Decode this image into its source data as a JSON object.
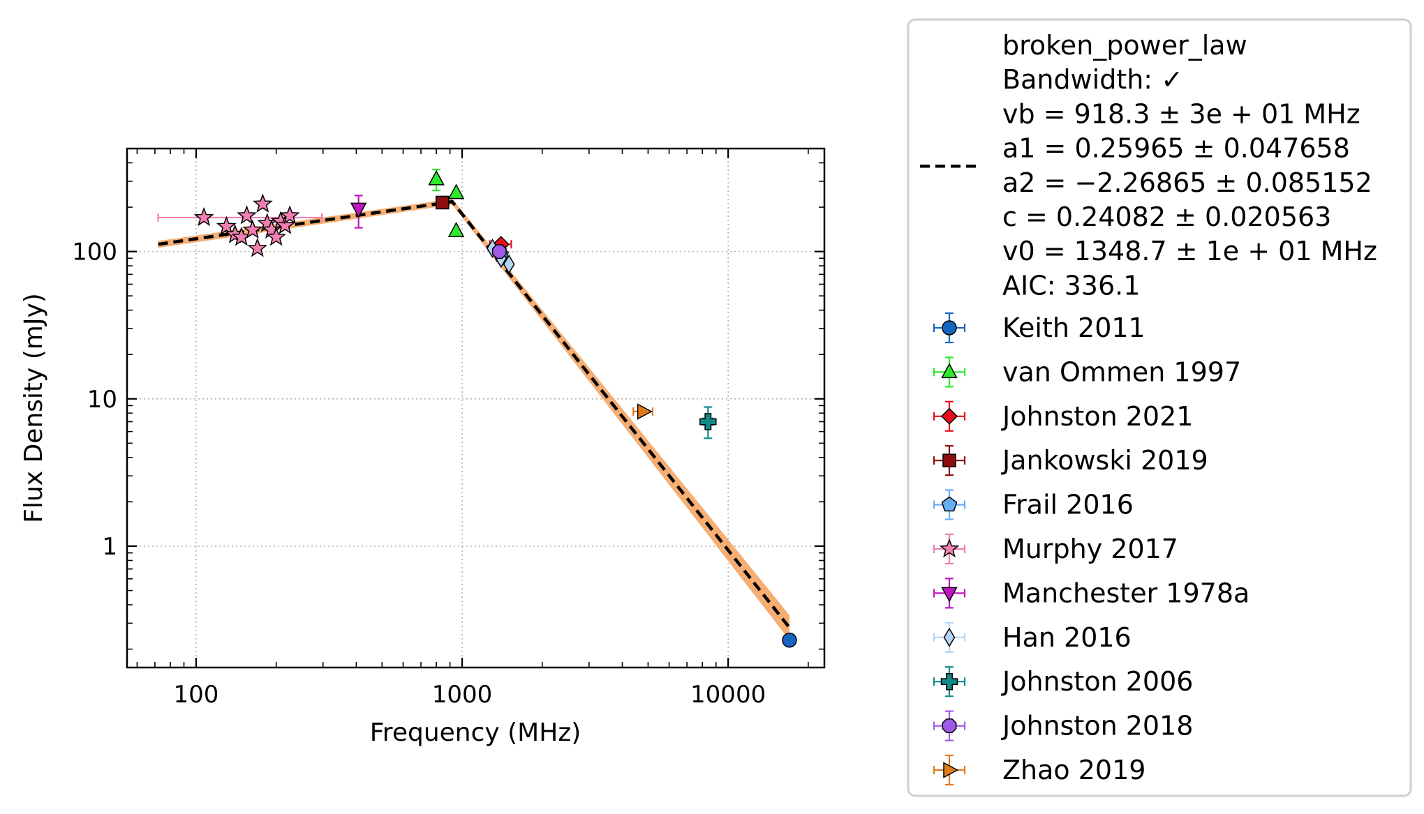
{
  "chart_data": {
    "type": "scatter",
    "x_scale": "log",
    "y_scale": "log",
    "xlabel": "Frequency (MHz)",
    "ylabel": "Flux Density (mJy)",
    "xlim": [
      55,
      23000
    ],
    "ylim": [
      0.15,
      500
    ],
    "grid": true,
    "x_ticks": [
      {
        "value": 100,
        "label": "100"
      },
      {
        "value": 1000,
        "label": "1000"
      },
      {
        "value": 10000,
        "label": "10000"
      }
    ],
    "y_ticks": [
      {
        "value": 1,
        "label": "1"
      },
      {
        "value": 10,
        "label": "10"
      },
      {
        "value": 100,
        "label": "100"
      }
    ],
    "legend_position": "outside-right",
    "fit": {
      "label_lines": [
        "broken_power_law",
        "Bandwidth: ✓",
        "vb = 918.3 ± 3e + 01 MHz",
        "a1 = 0.25965 ± 0.047658",
        "a2 = −2.26865 ± 0.085152",
        "c = 0.24082 ± 0.020563",
        "v0 = 1348.7 ± 1e + 01 MHz",
        "AIC: 336.1"
      ],
      "line_color": "#000000",
      "band_color": "#f5a05a",
      "curve": [
        {
          "x": 72,
          "y": 112
        },
        {
          "x": 918.3,
          "y": 218
        },
        {
          "x": 17000,
          "y": 0.28
        }
      ],
      "band": {
        "upper": [
          {
            "x": 72,
            "y": 118
          },
          {
            "x": 918.3,
            "y": 228
          },
          {
            "x": 17000,
            "y": 0.34
          }
        ],
        "lower": [
          {
            "x": 72,
            "y": 106
          },
          {
            "x": 918.3,
            "y": 208
          },
          {
            "x": 17000,
            "y": 0.23
          }
        ]
      }
    },
    "series": [
      {
        "name": "Keith 2011",
        "marker": "circle",
        "color": "#1565c0",
        "points": [
          {
            "x": 17000,
            "y": 0.23
          }
        ]
      },
      {
        "name": "van Ommen 1997",
        "marker": "triangle-up",
        "color": "#2ee82e",
        "points": [
          {
            "x": 800,
            "y": 310,
            "yerr": 50
          },
          {
            "x": 950,
            "y": 250
          },
          {
            "x": 950,
            "y": 138
          }
        ]
      },
      {
        "name": "Johnston 2021",
        "marker": "diamond",
        "color": "#e8101f",
        "points": [
          {
            "x": 1400,
            "y": 112,
            "xerr": 130
          }
        ]
      },
      {
        "name": "Jankowski 2019",
        "marker": "square",
        "color": "#8b0e0e",
        "points": [
          {
            "x": 843,
            "y": 215
          }
        ]
      },
      {
        "name": "Frail 2016",
        "marker": "pentagon",
        "color": "#6aaef2",
        "points": [
          {
            "x": 1400,
            "y": 95
          }
        ]
      },
      {
        "name": "Murphy 2017",
        "marker": "star",
        "color": "#f07fb2",
        "points": [
          {
            "x": 107,
            "y": 170,
            "xerr_lo": 35,
            "xerr_hi": 190
          },
          {
            "x": 130,
            "y": 148
          },
          {
            "x": 140,
            "y": 130
          },
          {
            "x": 148,
            "y": 125
          },
          {
            "x": 155,
            "y": 175
          },
          {
            "x": 163,
            "y": 140
          },
          {
            "x": 170,
            "y": 105
          },
          {
            "x": 178,
            "y": 210
          },
          {
            "x": 185,
            "y": 155
          },
          {
            "x": 192,
            "y": 140
          },
          {
            "x": 200,
            "y": 125
          },
          {
            "x": 208,
            "y": 160
          },
          {
            "x": 216,
            "y": 150
          },
          {
            "x": 225,
            "y": 175
          }
        ]
      },
      {
        "name": "Manchester 1978a",
        "marker": "triangle-down",
        "color": "#c015c0",
        "points": [
          {
            "x": 408,
            "y": 195,
            "yerr_lo": 50,
            "yerr_hi": 45
          }
        ]
      },
      {
        "name": "Han 2016",
        "marker": "thin-diamond",
        "color": "#b5d5f5",
        "points": [
          {
            "x": 1300,
            "y": 105
          },
          {
            "x": 1400,
            "y": 90
          },
          {
            "x": 1500,
            "y": 82
          }
        ]
      },
      {
        "name": "Johnston 2006",
        "marker": "plus",
        "color": "#118a8a",
        "points": [
          {
            "x": 8400,
            "y": 7.0,
            "yerr_lo": 1.6,
            "yerr_hi": 1.8,
            "xerr": 350
          }
        ]
      },
      {
        "name": "Johnston 2018",
        "marker": "octagon",
        "color": "#a05ae8",
        "points": [
          {
            "x": 1380,
            "y": 100
          }
        ]
      },
      {
        "name": "Zhao 2019",
        "marker": "triangle-right",
        "color": "#e07a1e",
        "points": [
          {
            "x": 4800,
            "y": 8.2,
            "xerr": 400
          }
        ]
      }
    ]
  }
}
